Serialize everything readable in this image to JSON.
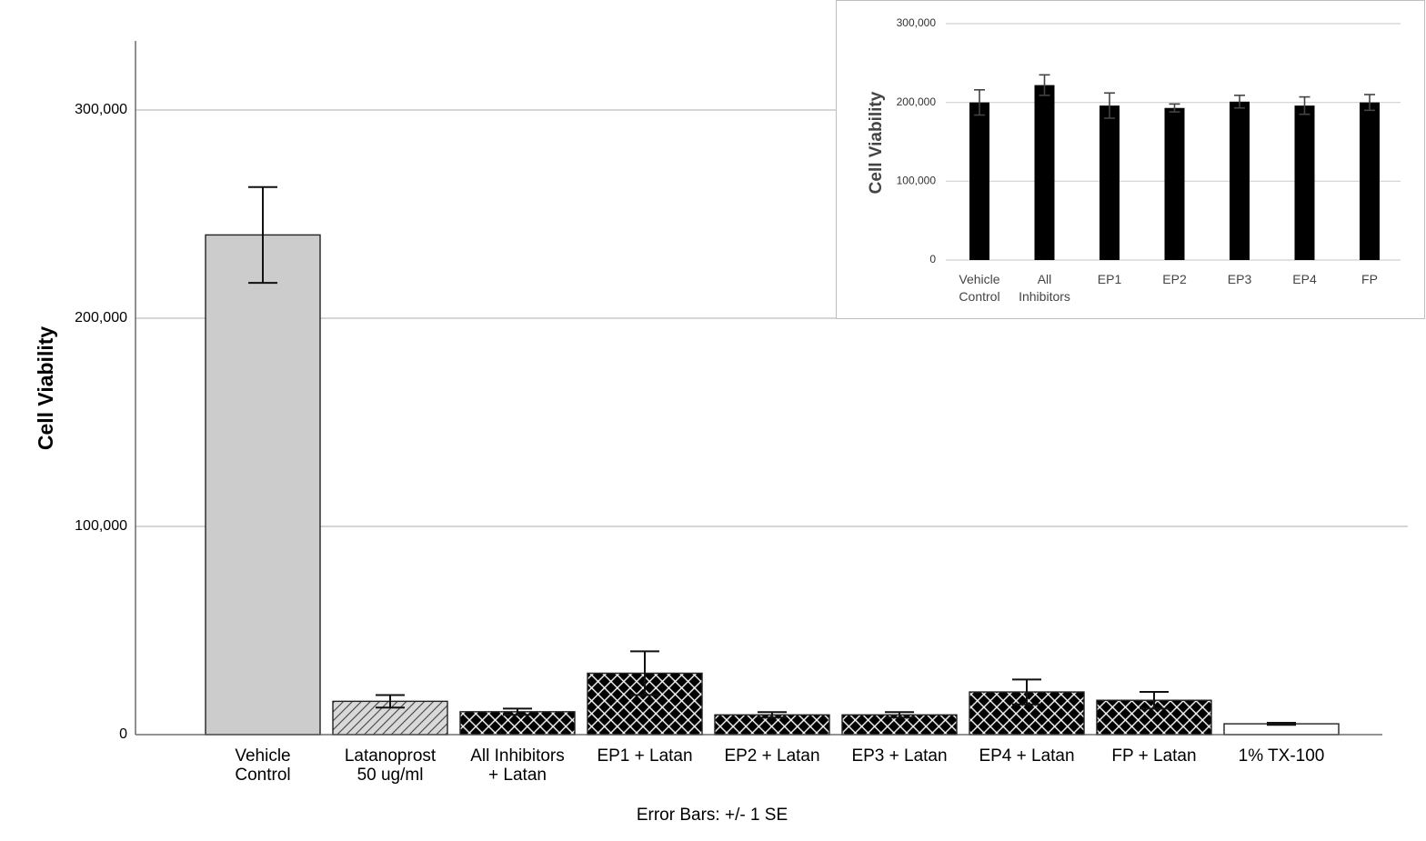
{
  "chart_data": [
    {
      "type": "bar",
      "ylabel": "Cell Viability",
      "xlabel": "",
      "footnote": "Error Bars: +/- 1 SE",
      "ylim": [
        0,
        330000
      ],
      "yticks": [
        0,
        100000,
        200000,
        300000
      ],
      "ytick_labels": [
        "0",
        "100,000",
        "200,000",
        "300,000"
      ],
      "grid": true,
      "categories": [
        [
          "Vehicle",
          "Control"
        ],
        [
          "Latanoprost",
          "50 ug/ml"
        ],
        [
          "All Inhibitors",
          "+ Latan"
        ],
        [
          "EP1 + Latan"
        ],
        [
          "EP2 + Latan"
        ],
        [
          "EP3 + Latan"
        ],
        [
          "EP4 + Latan"
        ],
        [
          "FP + Latan"
        ],
        [
          "1% TX-100"
        ]
      ],
      "values": [
        240000,
        16000,
        11000,
        29500,
        9500,
        9500,
        20500,
        16500,
        5200
      ],
      "error_se": [
        23000,
        3000,
        1500,
        10500,
        1300,
        1300,
        6000,
        4000,
        500
      ],
      "fills": [
        "solid-lightgray",
        "diagonal-hatch",
        "crosshatch",
        "crosshatch",
        "crosshatch",
        "crosshatch",
        "crosshatch",
        "crosshatch",
        "white"
      ]
    },
    {
      "type": "bar",
      "inset": true,
      "ylabel": "Cell Viability",
      "ylim": [
        0,
        300000
      ],
      "yticks": [
        0,
        100000,
        200000,
        300000
      ],
      "ytick_labels": [
        "0",
        "100,000",
        "200,000",
        "300,000"
      ],
      "grid": true,
      "categories": [
        [
          "Vehicle",
          "Control"
        ],
        [
          "All",
          "Inhibitors"
        ],
        [
          "EP1"
        ],
        [
          "EP2"
        ],
        [
          "EP3"
        ],
        [
          "EP4"
        ],
        [
          "FP"
        ]
      ],
      "values": [
        200000,
        222000,
        196000,
        193000,
        201000,
        196000,
        200000
      ],
      "error": [
        16000,
        13000,
        16000,
        5000,
        8000,
        11000,
        10000
      ],
      "color": "#000000"
    }
  ]
}
